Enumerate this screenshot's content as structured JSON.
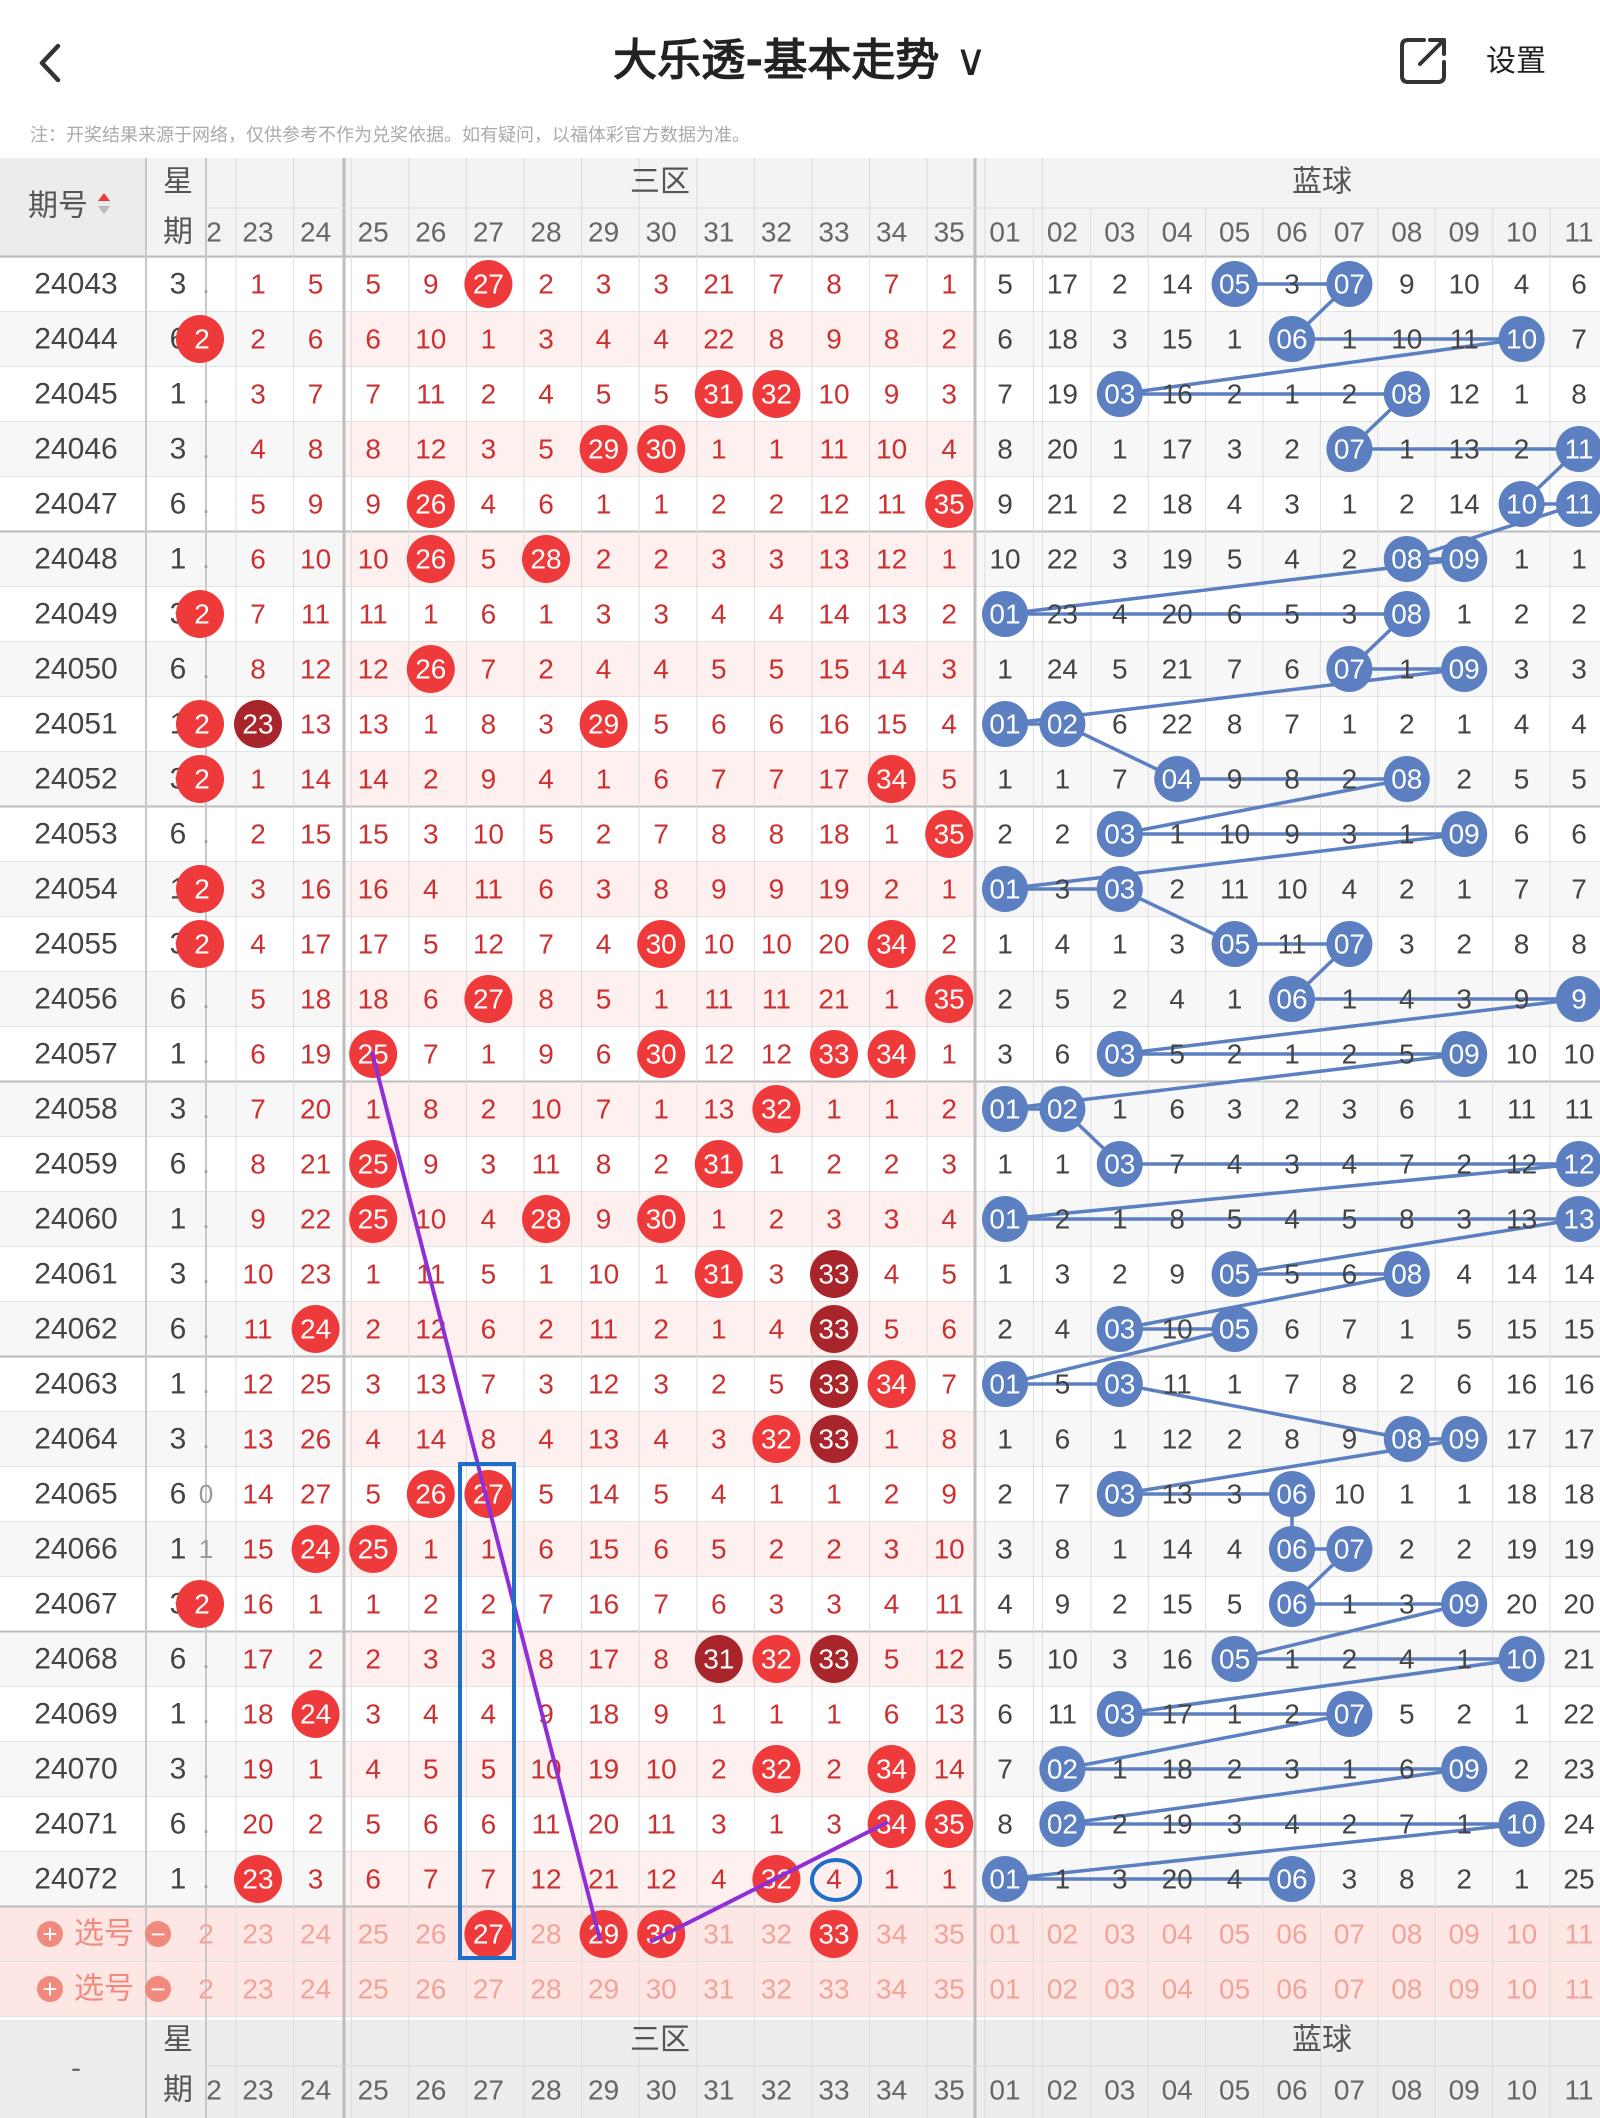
{
  "header": {
    "back_icon": "chevron-left-icon",
    "title": "大乐透-基本走势",
    "title_chevron": "∨",
    "share_icon": "external-link-icon",
    "settings": "设置"
  },
  "note": "注：开奖结果来源于网络，仅供参考不作为兑奖依据。如有疑问，以福体彩官方数据为准。",
  "colors": {
    "red": "#ee3a3a",
    "dark_red": "#a8262b",
    "blue": "#5b7fc0",
    "purple": "#8f2fd6",
    "box": "#1e6ec8",
    "red_text": "#cc3030",
    "pick_bg": "#fde6e4"
  },
  "table": {
    "head_issue": "期号",
    "sort_icon": "sort-icon",
    "head_week_1": "星",
    "head_week_2": "期",
    "zone_label": "三区",
    "blue_label": "蓝球",
    "red_cols": [
      "2",
      "23",
      "24",
      "25",
      "26",
      "27",
      "28",
      "29",
      "30",
      "31",
      "32",
      "33",
      "34",
      "35"
    ],
    "blue_cols": [
      "01",
      "02",
      "03",
      "04",
      "05",
      "06",
      "07",
      "08",
      "09",
      "10",
      "11"
    ],
    "rows": [
      {
        "issue": "24043",
        "week": "3",
        "red": [
          ".",
          "1",
          "5",
          "5",
          "9",
          "27",
          "2",
          "3",
          "3",
          "21",
          "7",
          "8",
          "7",
          "1"
        ],
        "blue": [
          "5",
          "17",
          "2",
          "14",
          "05",
          "3",
          "07",
          "9",
          "10",
          "4",
          "6"
        ]
      },
      {
        "issue": "24044",
        "week": "6",
        "red": [
          "2",
          "2",
          "6",
          "6",
          "10",
          "1",
          "3",
          "4",
          "4",
          "22",
          "8",
          "9",
          "8",
          "2"
        ],
        "blue": [
          "6",
          "18",
          "3",
          "15",
          "1",
          "06",
          "1",
          "10",
          "11",
          "10",
          "7"
        ]
      },
      {
        "issue": "24045",
        "week": "1",
        "red": [
          ".",
          "3",
          "7",
          "7",
          "11",
          "2",
          "4",
          "5",
          "5",
          "31",
          "32",
          "10",
          "9",
          "3"
        ],
        "blue": [
          "7",
          "19",
          "03",
          "16",
          "2",
          "1",
          "2",
          "08",
          "12",
          "1",
          "8"
        ]
      },
      {
        "issue": "24046",
        "week": "3",
        "red": [
          ".",
          "4",
          "8",
          "8",
          "12",
          "3",
          "5",
          "29",
          "30",
          "1",
          "1",
          "11",
          "10",
          "4"
        ],
        "blue": [
          "8",
          "20",
          "1",
          "17",
          "3",
          "2",
          "07",
          "1",
          "13",
          "2",
          "11"
        ]
      },
      {
        "issue": "24047",
        "week": "6",
        "red": [
          ".",
          "5",
          "9",
          "9",
          "26",
          "4",
          "6",
          "1",
          "1",
          "2",
          "2",
          "12",
          "11",
          "35"
        ],
        "blue": [
          "9",
          "21",
          "2",
          "18",
          "4",
          "3",
          "1",
          "2",
          "14",
          "10",
          "11"
        ]
      },
      {
        "issue": "24048",
        "week": "1",
        "red": [
          ".",
          "6",
          "10",
          "10",
          "26",
          "5",
          "28",
          "2",
          "2",
          "3",
          "3",
          "13",
          "12",
          "1"
        ],
        "blue": [
          "10",
          "22",
          "3",
          "19",
          "5",
          "4",
          "2",
          "08",
          "09",
          "1",
          "1"
        ]
      },
      {
        "issue": "24049",
        "week": "3",
        "red": [
          "2",
          "7",
          "11",
          "11",
          "1",
          "6",
          "1",
          "3",
          "3",
          "4",
          "4",
          "14",
          "13",
          "2"
        ],
        "blue": [
          "01",
          "23",
          "4",
          "20",
          "6",
          "5",
          "3",
          "08",
          "1",
          "2",
          "2"
        ]
      },
      {
        "issue": "24050",
        "week": "6",
        "red": [
          ".",
          "8",
          "12",
          "12",
          "26",
          "7",
          "2",
          "4",
          "4",
          "5",
          "5",
          "15",
          "14",
          "3"
        ],
        "blue": [
          "1",
          "24",
          "5",
          "21",
          "7",
          "6",
          "07",
          "1",
          "09",
          "3",
          "3"
        ]
      },
      {
        "issue": "24051",
        "week": "1",
        "red": [
          "2",
          "23",
          "13",
          "13",
          "1",
          "8",
          "3",
          "29",
          "5",
          "6",
          "6",
          "16",
          "15",
          "4"
        ],
        "blue": [
          "01",
          "02",
          "6",
          "22",
          "8",
          "7",
          "1",
          "2",
          "1",
          "4",
          "4"
        ]
      },
      {
        "issue": "24052",
        "week": "3",
        "red": [
          "2",
          "1",
          "14",
          "14",
          "2",
          "9",
          "4",
          "1",
          "6",
          "7",
          "7",
          "17",
          "34",
          "5"
        ],
        "blue": [
          "1",
          "1",
          "7",
          "04",
          "9",
          "8",
          "2",
          "08",
          "2",
          "5",
          "5"
        ]
      },
      {
        "issue": "24053",
        "week": "6",
        "red": [
          ".",
          "2",
          "15",
          "15",
          "3",
          "10",
          "5",
          "2",
          "7",
          "8",
          "8",
          "18",
          "1",
          "35"
        ],
        "blue": [
          "2",
          "2",
          "03",
          "1",
          "10",
          "9",
          "3",
          "1",
          "09",
          "6",
          "6"
        ]
      },
      {
        "issue": "24054",
        "week": "1",
        "red": [
          "2",
          "3",
          "16",
          "16",
          "4",
          "11",
          "6",
          "3",
          "8",
          "9",
          "9",
          "19",
          "2",
          "1"
        ],
        "blue": [
          "01",
          "3",
          "03",
          "2",
          "11",
          "10",
          "4",
          "2",
          "1",
          "7",
          "7"
        ]
      },
      {
        "issue": "24055",
        "week": "3",
        "red": [
          "2",
          "4",
          "17",
          "17",
          "5",
          "12",
          "7",
          "4",
          "30",
          "10",
          "10",
          "20",
          "34",
          "2"
        ],
        "blue": [
          "1",
          "4",
          "1",
          "3",
          "05",
          "11",
          "07",
          "3",
          "2",
          "8",
          "8"
        ]
      },
      {
        "issue": "24056",
        "week": "6",
        "red": [
          ".",
          "5",
          "18",
          "18",
          "6",
          "27",
          "8",
          "5",
          "1",
          "11",
          "11",
          "21",
          "1",
          "35"
        ],
        "blue": [
          "2",
          "5",
          "2",
          "4",
          "1",
          "06",
          "1",
          "4",
          "3",
          "9",
          "9"
        ]
      },
      {
        "issue": "24057",
        "week": "1",
        "red": [
          ".",
          "6",
          "19",
          "25",
          "7",
          "1",
          "9",
          "6",
          "30",
          "12",
          "12",
          "33",
          "34",
          "1"
        ],
        "blue": [
          "3",
          "6",
          "03",
          "5",
          "2",
          "1",
          "2",
          "5",
          "09",
          "10",
          "10"
        ]
      },
      {
        "issue": "24058",
        "week": "3",
        "red": [
          ".",
          "7",
          "20",
          "1",
          "8",
          "2",
          "10",
          "7",
          "1",
          "13",
          "32",
          "1",
          "1",
          "2"
        ],
        "blue": [
          "01",
          "02",
          "1",
          "6",
          "3",
          "2",
          "3",
          "6",
          "1",
          "11",
          "11"
        ]
      },
      {
        "issue": "24059",
        "week": "6",
        "red": [
          ".",
          "8",
          "21",
          "25",
          "9",
          "3",
          "11",
          "8",
          "2",
          "31",
          "1",
          "2",
          "2",
          "3"
        ],
        "blue": [
          "1",
          "1",
          "03",
          "7",
          "4",
          "3",
          "4",
          "7",
          "2",
          "12",
          "12"
        ]
      },
      {
        "issue": "24060",
        "week": "1",
        "red": [
          ".",
          "9",
          "22",
          "25",
          "10",
          "4",
          "28",
          "9",
          "30",
          "1",
          "2",
          "3",
          "3",
          "4"
        ],
        "blue": [
          "01",
          "2",
          "1",
          "8",
          "5",
          "4",
          "5",
          "8",
          "3",
          "13",
          "13"
        ]
      },
      {
        "issue": "24061",
        "week": "3",
        "red": [
          ".",
          "10",
          "23",
          "1",
          "11",
          "5",
          "1",
          "10",
          "1",
          "31",
          "3",
          "33",
          "4",
          "5"
        ],
        "blue": [
          "1",
          "3",
          "2",
          "9",
          "05",
          "5",
          "6",
          "08",
          "4",
          "14",
          "14"
        ]
      },
      {
        "issue": "24062",
        "week": "6",
        "red": [
          ".",
          "11",
          "24",
          "2",
          "12",
          "6",
          "2",
          "11",
          "2",
          "1",
          "4",
          "33",
          "5",
          "6"
        ],
        "blue": [
          "2",
          "4",
          "03",
          "10",
          "05",
          "6",
          "7",
          "1",
          "5",
          "15",
          "15"
        ]
      },
      {
        "issue": "24063",
        "week": "1",
        "red": [
          ".",
          "12",
          "25",
          "3",
          "13",
          "7",
          "3",
          "12",
          "3",
          "2",
          "5",
          "33",
          "34",
          "7"
        ],
        "blue": [
          "01",
          "5",
          "03",
          "11",
          "1",
          "7",
          "8",
          "2",
          "6",
          "16",
          "16"
        ]
      },
      {
        "issue": "24064",
        "week": "3",
        "red": [
          ".",
          "13",
          "26",
          "4",
          "14",
          "8",
          "4",
          "13",
          "4",
          "3",
          "32",
          "33",
          "1",
          "8"
        ],
        "blue": [
          "1",
          "6",
          "1",
          "12",
          "2",
          "8",
          "9",
          "08",
          "09",
          "17",
          "17"
        ]
      },
      {
        "issue": "24065",
        "week": "6",
        "red": [
          "0",
          "14",
          "27",
          "5",
          "26",
          "27",
          "5",
          "14",
          "5",
          "4",
          "1",
          "1",
          "2",
          "9"
        ],
        "blue": [
          "2",
          "7",
          "03",
          "13",
          "3",
          "06",
          "10",
          "1",
          "1",
          "18",
          "18"
        ]
      },
      {
        "issue": "24066",
        "week": "1",
        "red": [
          "1",
          "15",
          "24",
          "25",
          "1",
          "1",
          "6",
          "15",
          "6",
          "5",
          "2",
          "2",
          "3",
          "10"
        ],
        "blue": [
          "3",
          "8",
          "1",
          "14",
          "4",
          "06",
          "07",
          "2",
          "2",
          "19",
          "19"
        ]
      },
      {
        "issue": "24067",
        "week": "3",
        "red": [
          "2",
          "16",
          "1",
          "1",
          "2",
          "2",
          "7",
          "16",
          "7",
          "6",
          "3",
          "3",
          "4",
          "11"
        ],
        "blue": [
          "4",
          "9",
          "2",
          "15",
          "5",
          "06",
          "1",
          "3",
          "09",
          "20",
          "20"
        ]
      },
      {
        "issue": "24068",
        "week": "6",
        "red": [
          ".",
          "17",
          "2",
          "2",
          "3",
          "3",
          "8",
          "17",
          "8",
          "31",
          "32",
          "33",
          "5",
          "12"
        ],
        "blue": [
          "5",
          "10",
          "3",
          "16",
          "05",
          "1",
          "2",
          "4",
          "1",
          "10",
          "21"
        ]
      },
      {
        "issue": "24069",
        "week": "1",
        "red": [
          ".",
          "18",
          "24",
          "3",
          "4",
          "4",
          "9",
          "18",
          "9",
          "1",
          "1",
          "1",
          "6",
          "13"
        ],
        "blue": [
          "6",
          "11",
          "03",
          "17",
          "1",
          "2",
          "07",
          "5",
          "2",
          "1",
          "22"
        ]
      },
      {
        "issue": "24070",
        "week": "3",
        "red": [
          ".",
          "19",
          "1",
          "4",
          "5",
          "5",
          "10",
          "19",
          "10",
          "2",
          "32",
          "2",
          "34",
          "14"
        ],
        "blue": [
          "7",
          "02",
          "1",
          "18",
          "2",
          "3",
          "1",
          "6",
          "09",
          "2",
          "23"
        ]
      },
      {
        "issue": "24071",
        "week": "6",
        "red": [
          ".",
          "20",
          "2",
          "5",
          "6",
          "6",
          "11",
          "20",
          "11",
          "3",
          "1",
          "3",
          "34",
          "35"
        ],
        "blue": [
          "8",
          "02",
          "2",
          "19",
          "3",
          "4",
          "2",
          "7",
          "1",
          "10",
          "24"
        ]
      },
      {
        "issue": "24072",
        "week": "1",
        "red": [
          ".",
          "23",
          "3",
          "6",
          "7",
          "7",
          "12",
          "21",
          "12",
          "4",
          "32",
          "4",
          "1",
          "1"
        ],
        "blue": [
          "01",
          "1",
          "3",
          "20",
          "4",
          "06",
          "3",
          "8",
          "2",
          "1",
          "25"
        ]
      }
    ],
    "pick_label": "选号",
    "pick_plus_icon": "plus-circle-icon",
    "pick_minus_icon": "minus-circle-icon",
    "footer_issue": "-"
  }
}
